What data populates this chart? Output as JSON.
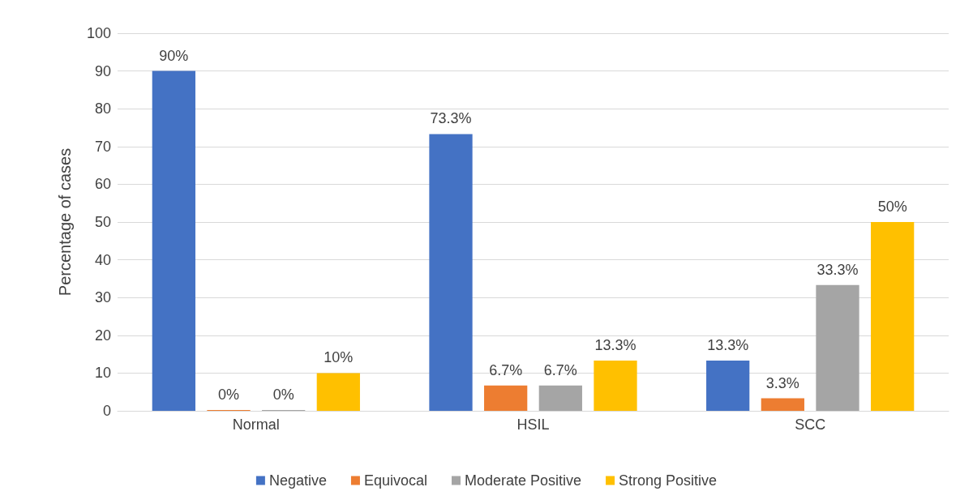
{
  "chart_data": {
    "type": "bar",
    "ylabel": "Percentage of cases",
    "categories": [
      "Normal",
      "HSIL",
      "SCC"
    ],
    "series": [
      {
        "name": "Negative",
        "color": "#4472c4",
        "values": [
          90,
          73.3,
          13.3
        ],
        "value_labels": [
          "90%",
          "73.3%",
          "13.3%"
        ]
      },
      {
        "name": "Equivocal",
        "color": "#ed7d31",
        "values": [
          0,
          6.7,
          3.3
        ],
        "value_labels": [
          "0%",
          "6.7%",
          "3.3%"
        ]
      },
      {
        "name": "Moderate Positive",
        "color": "#a5a5a5",
        "values": [
          0,
          6.7,
          33.3
        ],
        "value_labels": [
          "0%",
          "6.7%",
          "33.3%"
        ]
      },
      {
        "name": "Strong Positive",
        "color": "#ffc000",
        "values": [
          10,
          13.3,
          50
        ],
        "value_labels": [
          "10%",
          "13.3%",
          "50%"
        ]
      }
    ],
    "ylim": [
      0,
      100
    ],
    "yticks": [
      0,
      10,
      20,
      30,
      40,
      50,
      60,
      70,
      80,
      90,
      100
    ],
    "grid": "y",
    "legend": "bottom"
  }
}
